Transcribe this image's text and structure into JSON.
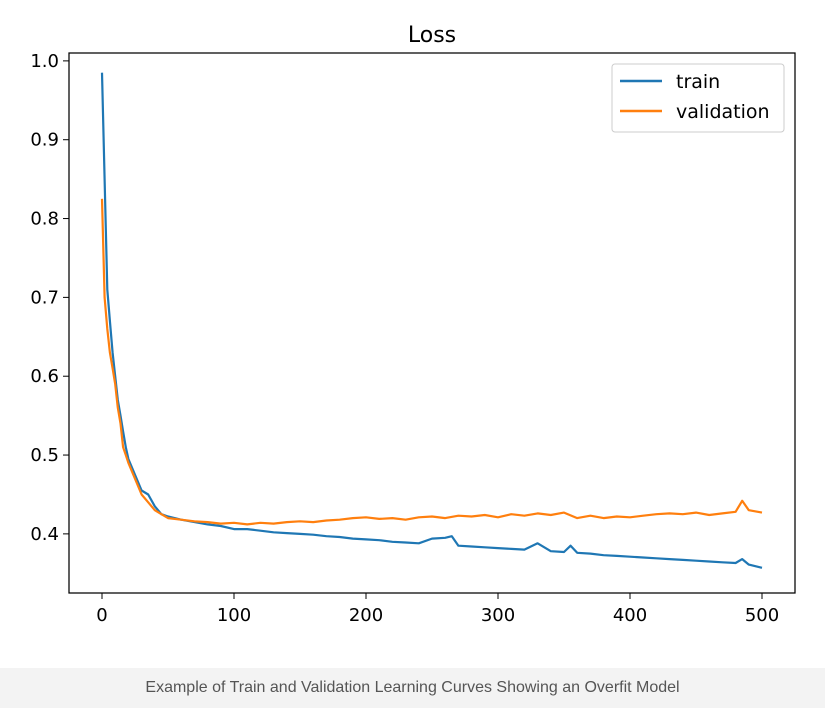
{
  "caption": "Example of Train and Validation Learning Curves Showing an Overfit Model",
  "chart_data": {
    "type": "line",
    "title": "Loss",
    "xlabel": "",
    "ylabel": "",
    "xlim": [
      -25,
      525
    ],
    "ylim": [
      0.325,
      1.01
    ],
    "xticks": [
      0,
      100,
      200,
      300,
      400,
      500
    ],
    "yticks": [
      0.4,
      0.5,
      0.6,
      0.7,
      0.8,
      0.9,
      1.0
    ],
    "ytick_labels": [
      "0.4",
      "0.5",
      "0.6",
      "0.7",
      "0.8",
      "0.9",
      "1.0"
    ],
    "grid": false,
    "legend_position": "top-right",
    "series": [
      {
        "name": "train",
        "color": "#1f77b4",
        "x": [
          0,
          2,
          4,
          6,
          8,
          10,
          12,
          14,
          16,
          18,
          20,
          25,
          30,
          35,
          40,
          45,
          50,
          60,
          70,
          80,
          90,
          100,
          110,
          120,
          130,
          140,
          150,
          160,
          170,
          180,
          190,
          200,
          210,
          220,
          230,
          240,
          250,
          260,
          265,
          270,
          280,
          290,
          300,
          310,
          320,
          330,
          340,
          350,
          355,
          360,
          370,
          380,
          390,
          400,
          410,
          420,
          430,
          440,
          450,
          460,
          470,
          480,
          485,
          490,
          500
        ],
        "values": [
          0.985,
          0.85,
          0.71,
          0.67,
          0.63,
          0.6,
          0.57,
          0.55,
          0.53,
          0.51,
          0.495,
          0.475,
          0.455,
          0.45,
          0.435,
          0.425,
          0.422,
          0.418,
          0.415,
          0.412,
          0.41,
          0.406,
          0.406,
          0.404,
          0.402,
          0.401,
          0.4,
          0.399,
          0.397,
          0.396,
          0.394,
          0.393,
          0.392,
          0.39,
          0.389,
          0.388,
          0.394,
          0.395,
          0.397,
          0.385,
          0.384,
          0.383,
          0.382,
          0.381,
          0.38,
          0.388,
          0.378,
          0.377,
          0.385,
          0.376,
          0.375,
          0.373,
          0.372,
          0.371,
          0.37,
          0.369,
          0.368,
          0.367,
          0.366,
          0.365,
          0.364,
          0.363,
          0.368,
          0.361,
          0.357
        ]
      },
      {
        "name": "validation",
        "color": "#ff7f0e",
        "x": [
          0,
          2,
          4,
          6,
          8,
          10,
          12,
          14,
          16,
          18,
          20,
          25,
          30,
          35,
          40,
          45,
          50,
          60,
          70,
          80,
          90,
          100,
          110,
          120,
          130,
          140,
          150,
          160,
          170,
          180,
          190,
          200,
          210,
          220,
          230,
          240,
          250,
          260,
          270,
          280,
          290,
          300,
          310,
          320,
          330,
          340,
          350,
          360,
          370,
          380,
          390,
          400,
          410,
          420,
          430,
          440,
          450,
          460,
          470,
          480,
          485,
          490,
          500
        ],
        "values": [
          0.825,
          0.7,
          0.66,
          0.63,
          0.61,
          0.59,
          0.56,
          0.54,
          0.51,
          0.5,
          0.49,
          0.47,
          0.45,
          0.44,
          0.43,
          0.425,
          0.42,
          0.418,
          0.416,
          0.415,
          0.413,
          0.414,
          0.412,
          0.414,
          0.413,
          0.415,
          0.416,
          0.415,
          0.417,
          0.418,
          0.42,
          0.421,
          0.419,
          0.42,
          0.418,
          0.421,
          0.422,
          0.42,
          0.423,
          0.422,
          0.424,
          0.421,
          0.425,
          0.423,
          0.426,
          0.424,
          0.427,
          0.42,
          0.423,
          0.42,
          0.422,
          0.421,
          0.423,
          0.425,
          0.426,
          0.425,
          0.427,
          0.424,
          0.426,
          0.428,
          0.442,
          0.43,
          0.427
        ]
      }
    ]
  }
}
